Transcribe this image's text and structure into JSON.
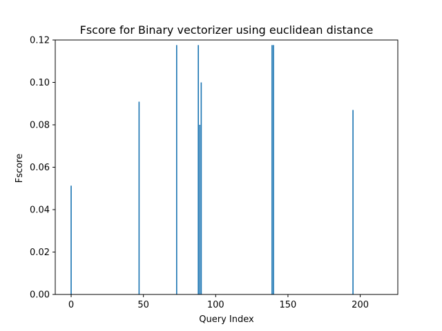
{
  "chart_data": {
    "type": "bar",
    "title": "Fscore for Binary vectorizer using euclidean distance",
    "xlabel": "Query Index",
    "ylabel": "Fscore",
    "xlim": [
      -11,
      226
    ],
    "ylim": [
      0,
      0.12
    ],
    "xticks": [
      0,
      50,
      100,
      150,
      200
    ],
    "yticks": [
      0.0,
      0.02,
      0.04,
      0.06,
      0.08,
      0.1,
      0.12
    ],
    "ytick_labels": [
      "0.00",
      "0.02",
      "0.04",
      "0.06",
      "0.08",
      "0.10",
      "0.12"
    ],
    "bar_color": "#1f77b4",
    "grid": false,
    "x": [
      0,
      47,
      73,
      88,
      89,
      90,
      139,
      140,
      195
    ],
    "values": [
      0.0513,
      0.0909,
      0.1176,
      0.1176,
      0.08,
      0.1,
      0.1176,
      0.1176,
      0.087
    ]
  }
}
